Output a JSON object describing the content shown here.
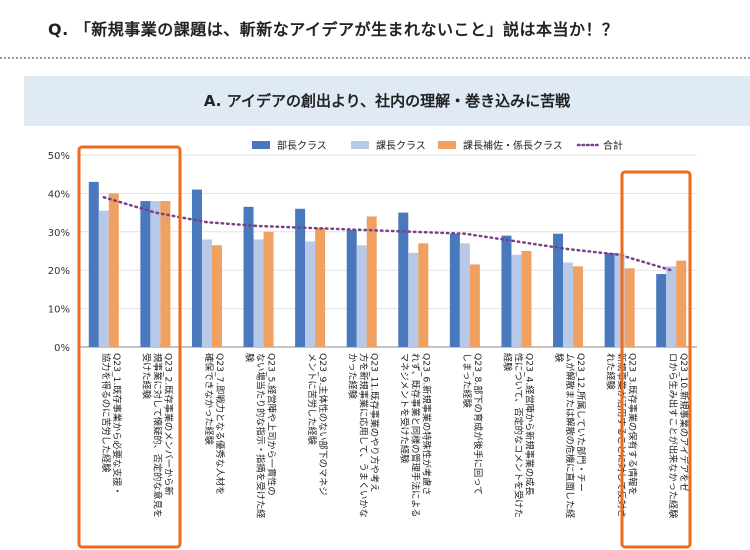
{
  "question": "Q. 「新規事業の課題は、斬新なアイデアが生まれないこと」説は本当か！？",
  "answer": "A. アイデアの創出より、社内の理解・巻き込みに苦戦",
  "colors": {
    "bucho": "#4a78bd",
    "kacho": "#b7c9e6",
    "kakari": "#f0a060",
    "total": "#7a3f8c",
    "highlight": "#ee6a1e"
  },
  "chart_data": {
    "type": "bar",
    "ylim": [
      0,
      50
    ],
    "yticks": [
      "0%",
      "10%",
      "20%",
      "30%",
      "40%",
      "50%"
    ],
    "legend_position": "top",
    "series": [
      {
        "name": "部長クラス",
        "values": [
          43,
          38,
          41,
          36.5,
          36,
          30.5,
          35,
          29.5,
          29,
          29.5,
          24.5,
          19
        ]
      },
      {
        "name": "課長クラス",
        "values": [
          35.5,
          38,
          28,
          28,
          27.5,
          26.5,
          24.5,
          27,
          24,
          22,
          24.5,
          21
        ]
      },
      {
        "name": "課長補佐・係長クラス",
        "values": [
          40,
          38,
          26.5,
          30,
          31,
          34,
          27,
          21.5,
          25,
          21,
          20.5,
          22.5
        ]
      },
      {
        "name": "合計",
        "type": "line",
        "values": [
          39,
          35,
          32.5,
          31.5,
          31,
          30.5,
          30,
          29.5,
          27.5,
          25.5,
          24,
          20
        ]
      }
    ],
    "categories": [
      "Q23_1.既存事業から必要な支援・協力を得るのに苦労した経験",
      "Q23_2.既存事業のメンバーから新規事業に対して懐疑的、否定的な意見を受けた経験",
      "Q23_7.即戦力となる優秀な人材を確保できなかった経験",
      "Q23_5.経営陣や上司から一貫性のない場当たり的な指示・指摘を受けた経験",
      "Q23_9.主体性のない部下のマネジメントに苦労した経験",
      "Q23_11.既存事業のやり方や考え方を新規事業に応用して、うまくいかなかった経験",
      "Q23_6.新規事業の特殊性が考慮されず、既存事業と同様の管理手法によるマネジメントを受けた経験",
      "Q23_8.部下の育成が後手に回ってしまった経験",
      "Q23_4.経営陣から新規事業の成長性について、否定的なコメントを受けた経験",
      "Q23_12.所属していた部門・チームが解散または解散の危機に直面した経験",
      "Q23_3.既存事業の保有する情報を新規事業が活用することに対して反対された経験",
      "Q23_10.新規事業のアイデアをゼロから生み出すことが出来なかった経験"
    ]
  }
}
